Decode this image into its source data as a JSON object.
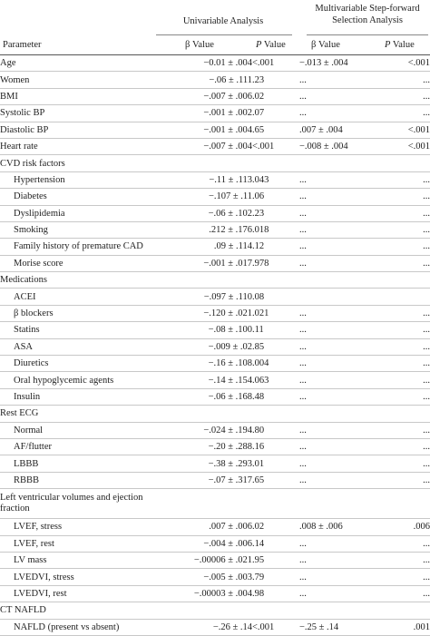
{
  "header": {
    "univariable": "Univariable Analysis",
    "multivariable": "Multivariable Step-forward Selection Analysis",
    "parameter": "Parameter",
    "beta_value": "β Value",
    "p_label": "P",
    "value_label": " Value"
  },
  "rows": [
    {
      "label": "Age",
      "indent": false,
      "ub": "−0.01 ± .004",
      "up": "<.001",
      "mb": "−.013 ± .004",
      "mp": "<.001"
    },
    {
      "label": "Women",
      "indent": false,
      "ub": "−.06 ± .111",
      "up": ".23",
      "mb": "...",
      "mp": "..."
    },
    {
      "label": "BMI",
      "indent": false,
      "ub": "−.007 ± .006",
      "up": ".02",
      "mb": "...",
      "mp": "..."
    },
    {
      "label": "Systolic BP",
      "indent": false,
      "ub": "−.001 ± .002",
      "up": ".07",
      "mb": "...",
      "mp": "..."
    },
    {
      "label": "Diastolic BP",
      "indent": false,
      "ub": "−.001 ± .004",
      "up": ".65",
      "mb": ".007 ± .004",
      "mp": "<.001"
    },
    {
      "label": "Heart rate",
      "indent": false,
      "ub": "−.007 ± .004",
      "up": "<.001",
      "mb": "−.008 ± .004",
      "mp": "<.001"
    },
    {
      "label": "CVD risk factors",
      "indent": false,
      "ub": "",
      "up": "",
      "mb": "",
      "mp": ""
    },
    {
      "label": "Hypertension",
      "indent": true,
      "ub": "−.11 ± .113",
      "up": ".043",
      "mb": "...",
      "mp": "..."
    },
    {
      "label": "Diabetes",
      "indent": true,
      "ub": "−.107 ± .11",
      "up": ".06",
      "mb": "...",
      "mp": "..."
    },
    {
      "label": "Dyslipidemia",
      "indent": true,
      "ub": "−.06 ± .102",
      "up": ".23",
      "mb": "...",
      "mp": "..."
    },
    {
      "label": "Smoking",
      "indent": true,
      "ub": ".212 ± .176",
      "up": ".018",
      "mb": "...",
      "mp": "..."
    },
    {
      "label": "Family history of premature CAD",
      "indent": true,
      "ub": ".09 ± .114",
      "up": ".12",
      "mb": "...",
      "mp": "..."
    },
    {
      "label": "Morise score",
      "indent": true,
      "ub": "−.001 ± .017",
      "up": ".978",
      "mb": "...",
      "mp": "..."
    },
    {
      "label": "Medications",
      "indent": false,
      "ub": "",
      "up": "",
      "mb": "",
      "mp": ""
    },
    {
      "label": "ACEI",
      "indent": true,
      "ub": "−.097 ± .110",
      "up": ".08",
      "mb": "",
      "mp": ""
    },
    {
      "label": "β blockers",
      "indent": true,
      "ub": "−.120 ± .021",
      "up": ".021",
      "mb": "...",
      "mp": "..."
    },
    {
      "label": "Statins",
      "indent": true,
      "ub": "−.08 ± .100",
      "up": ".11",
      "mb": "...",
      "mp": "..."
    },
    {
      "label": "ASA",
      "indent": true,
      "ub": "−.009 ± .02",
      "up": ".85",
      "mb": "...",
      "mp": "..."
    },
    {
      "label": "Diuretics",
      "indent": true,
      "ub": "−.16 ± .108",
      "up": ".004",
      "mb": "...",
      "mp": "..."
    },
    {
      "label": "Oral hypoglycemic agents",
      "indent": true,
      "ub": "−.14 ± .154",
      "up": ".063",
      "mb": "...",
      "mp": "..."
    },
    {
      "label": "Insulin",
      "indent": true,
      "ub": "−.06 ± .168",
      "up": ".48",
      "mb": "...",
      "mp": "..."
    },
    {
      "label": "Rest ECG",
      "indent": false,
      "ub": "",
      "up": "",
      "mb": "",
      "mp": ""
    },
    {
      "label": "Normal",
      "indent": true,
      "ub": "−.024 ± .194",
      "up": ".80",
      "mb": "...",
      "mp": "..."
    },
    {
      "label": "AF/flutter",
      "indent": true,
      "ub": "−.20 ± .288",
      "up": ".16",
      "mb": "...",
      "mp": "..."
    },
    {
      "label": "LBBB",
      "indent": true,
      "ub": "−.38 ± .293",
      "up": ".01",
      "mb": "...",
      "mp": "..."
    },
    {
      "label": "RBBB",
      "indent": true,
      "ub": "−.07 ± .317",
      "up": ".65",
      "mb": "...",
      "mp": "..."
    },
    {
      "label": "Left ventricular volumes and ejection fraction",
      "indent": false,
      "tall": true,
      "ub": "",
      "up": "",
      "mb": "",
      "mp": ""
    },
    {
      "label": "LVEF, stress",
      "indent": true,
      "ub": ".007 ± .006",
      "up": ".02",
      "mb": ".008 ± .006",
      "mp": ".006"
    },
    {
      "label": "LVEF, rest",
      "indent": true,
      "ub": "−.004 ± .006",
      "up": ".14",
      "mb": "...",
      "mp": "..."
    },
    {
      "label": "LV mass",
      "indent": true,
      "ub": "−.00006 ± .021",
      "up": ".95",
      "mb": "...",
      "mp": "..."
    },
    {
      "label": "LVEDVI, stress",
      "indent": true,
      "ub": "−.005 ± .003",
      "up": ".79",
      "mb": "...",
      "mp": "..."
    },
    {
      "label": "LVEDVI, rest",
      "indent": true,
      "ub": "−.00003 ± .004",
      "up": ".98",
      "mb": "...",
      "mp": "..."
    },
    {
      "label": "CT NAFLD",
      "indent": false,
      "ub": "",
      "up": "",
      "mb": "",
      "mp": ""
    },
    {
      "label": "NAFLD (present vs absent)",
      "indent": true,
      "ub": "−.26 ± .14",
      "up": "<.001",
      "mb": "−.25 ± .14",
      "mp": ".001"
    }
  ]
}
